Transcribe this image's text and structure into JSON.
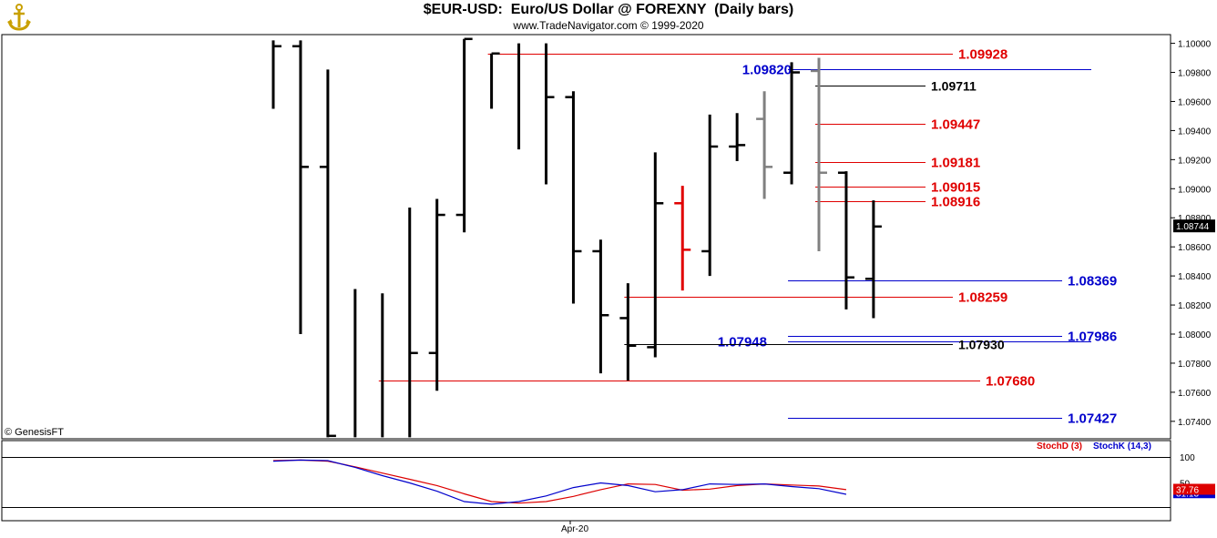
{
  "header": {
    "title": "$EUR-USD:  Euro/US Dollar @ FOREXNY  (Daily bars)",
    "subtitle": "www.TradeNavigator.com © 1999-2020",
    "logo_icon": "anchor-logo-icon"
  },
  "credit": "© GenesisFT",
  "colors": {
    "bar": "#000000",
    "gray_bar": "#808080",
    "red_bar": "#e00000",
    "red_level": "#e00000",
    "blue_level": "#0000cc",
    "black_level": "#000000",
    "stoch_d": "#dd0000",
    "stoch_k": "#0000cc",
    "last_price_bg": "#000000"
  },
  "chart_data": [
    {
      "type": "ohlc",
      "name": "price",
      "x_label": "Apr-20",
      "ylim": [
        1.0728,
        1.1006
      ],
      "y_ticks": [
        "1.10000",
        "1.09800",
        "1.09600",
        "1.09400",
        "1.09200",
        "1.09000",
        "1.08800",
        "1.08600",
        "1.08400",
        "1.08200",
        "1.08000",
        "1.07800",
        "1.07600",
        "1.07400"
      ],
      "last_price": "1.08744",
      "bars": [
        {
          "i": 0,
          "h": 1.1002,
          "l": 1.0955,
          "o": null,
          "c": 1.0998,
          "color": "black"
        },
        {
          "i": 1,
          "h": 1.1002,
          "l": 1.08,
          "o": 1.0998,
          "c": 1.0915,
          "color": "black"
        },
        {
          "i": 2,
          "h": 1.0982,
          "l": 1.0729,
          "o": 1.0915,
          "c": 1.073,
          "color": "black"
        },
        {
          "i": 3,
          "h": 1.0831,
          "l": 1.0729,
          "o": null,
          "c": null,
          "color": "black"
        },
        {
          "i": 4,
          "h": 1.0828,
          "l": 1.0729,
          "o": null,
          "c": null,
          "color": "black"
        },
        {
          "i": 5,
          "h": 1.0887,
          "l": 1.0729,
          "o": null,
          "c": 1.0787,
          "color": "black"
        },
        {
          "i": 6,
          "h": 1.0893,
          "l": 1.0761,
          "o": 1.0787,
          "c": 1.0882,
          "color": "black"
        },
        {
          "i": 7,
          "h": 1.1003,
          "l": 1.087,
          "o": 1.0882,
          "c": 1.1003,
          "color": "black"
        },
        {
          "i": 8,
          "h": 1.0993,
          "l": 1.0955,
          "o": null,
          "c": 1.0993,
          "color": "black"
        },
        {
          "i": 9,
          "h": 1.1,
          "l": 1.0927,
          "o": null,
          "c": null,
          "color": "black"
        },
        {
          "i": 10,
          "h": 1.1,
          "l": 1.0903,
          "o": null,
          "c": 1.0963,
          "color": "black"
        },
        {
          "i": 11,
          "h": 1.0967,
          "l": 1.0821,
          "o": 1.0963,
          "c": 1.0857,
          "color": "black"
        },
        {
          "i": 12,
          "h": 1.0865,
          "l": 1.0773,
          "o": 1.0857,
          "c": 1.0813,
          "color": "black"
        },
        {
          "i": 13,
          "h": 1.0835,
          "l": 1.0768,
          "o": 1.0811,
          "c": 1.0792,
          "color": "black"
        },
        {
          "i": 14,
          "h": 1.0925,
          "l": 1.0784,
          "o": 1.0791,
          "c": 1.089,
          "color": "black"
        },
        {
          "i": 15,
          "h": 1.0902,
          "l": 1.083,
          "o": 1.089,
          "c": 1.0858,
          "color": "red"
        },
        {
          "i": 16,
          "h": 1.0951,
          "l": 1.084,
          "o": 1.0857,
          "c": 1.0929,
          "color": "black"
        },
        {
          "i": 17,
          "h": 1.0952,
          "l": 1.0919,
          "o": 1.0929,
          "c": 1.093,
          "color": "black"
        },
        {
          "i": 18,
          "h": 1.0967,
          "l": 1.0893,
          "o": 1.0948,
          "c": 1.0915,
          "color": "gray"
        },
        {
          "i": 19,
          "h": 1.0987,
          "l": 1.0903,
          "o": 1.0911,
          "c": 1.098,
          "color": "black"
        },
        {
          "i": 20,
          "h": 1.099,
          "l": 1.0857,
          "o": 1.0981,
          "c": 1.0911,
          "color": "gray"
        },
        {
          "i": 21,
          "h": 1.0912,
          "l": 1.0817,
          "o": 1.0911,
          "c": 1.0839,
          "color": "black"
        },
        {
          "i": 22,
          "h": 1.0892,
          "l": 1.0811,
          "o": 1.0838,
          "c": 1.0874,
          "color": "black"
        }
      ],
      "levels": [
        {
          "value": 1.09928,
          "label": "1.09928",
          "color": "red",
          "from_bar": 8,
          "label_side": "right",
          "label_at": 1052
        },
        {
          "value": 1.0982,
          "label": "1.09820",
          "color": "blue",
          "from_bar": 19,
          "label_side": "left",
          "label_at": 869
        },
        {
          "value": 1.09711,
          "label": "1.09711",
          "color": "black",
          "from_bar": 20,
          "label_side": "right",
          "label_at": 1022
        },
        {
          "value": 1.09447,
          "label": "1.09447",
          "color": "red",
          "from_bar": 20,
          "label_side": "right",
          "label_at": 1022
        },
        {
          "value": 1.09181,
          "label": "1.09181",
          "color": "red",
          "from_bar": 20,
          "label_side": "right",
          "label_at": 1022
        },
        {
          "value": 1.09015,
          "label": "1.09015",
          "color": "red",
          "from_bar": 20,
          "label_side": "right",
          "label_at": 1022
        },
        {
          "value": 1.08916,
          "label": "1.08916",
          "color": "red",
          "from_bar": 20,
          "label_side": "right",
          "label_at": 1022
        },
        {
          "value": 1.08369,
          "label": "1.08369",
          "color": "blue",
          "from_bar": 19,
          "label_side": "right",
          "label_at": 1172
        },
        {
          "value": 1.08259,
          "label": "1.08259",
          "color": "red",
          "from_bar": 13,
          "label_side": "right",
          "label_at": 1052
        },
        {
          "value": 1.07986,
          "label": "1.07986",
          "color": "blue",
          "from_bar": 19,
          "label_side": "right",
          "label_at": 1172
        },
        {
          "value": 1.07948,
          "label": "1.07948",
          "color": "blue",
          "from_bar": 19,
          "label_side": "left",
          "label_at": 842
        },
        {
          "value": 1.0793,
          "label": "1.07930",
          "color": "black",
          "from_bar": 13,
          "label_side": "right",
          "label_at": 1052
        },
        {
          "value": 1.0768,
          "label": "1.07680",
          "color": "red",
          "from_bar": 4,
          "label_side": "right",
          "label_at": 1082
        },
        {
          "value": 1.07427,
          "label": "1.07427",
          "color": "blue",
          "from_bar": 19,
          "label_side": "right",
          "label_at": 1172
        }
      ]
    },
    {
      "type": "line",
      "name": "stochastic",
      "ylim": [
        0,
        100
      ],
      "y_ticks": [
        "100",
        "50"
      ],
      "series": [
        {
          "name": "StochD (3)",
          "label": "StochD (3)",
          "color": "red",
          "last_value": "37.76",
          "values": [
            93,
            94,
            92,
            81,
            69,
            57,
            45,
            29,
            14,
            11,
            14,
            24,
            37,
            48,
            47,
            36,
            38,
            45,
            48,
            46,
            44,
            37,
            null
          ]
        },
        {
          "name": "StochK (14,3)",
          "label": "StochK (14,3)",
          "color": "blue",
          "last_value": "31.13",
          "values": [
            92,
            94,
            93,
            80,
            64,
            50,
            34,
            14,
            9,
            14,
            25,
            41,
            50,
            45,
            33,
            37,
            48,
            47,
            48,
            43,
            39,
            28,
            null
          ]
        }
      ]
    }
  ]
}
